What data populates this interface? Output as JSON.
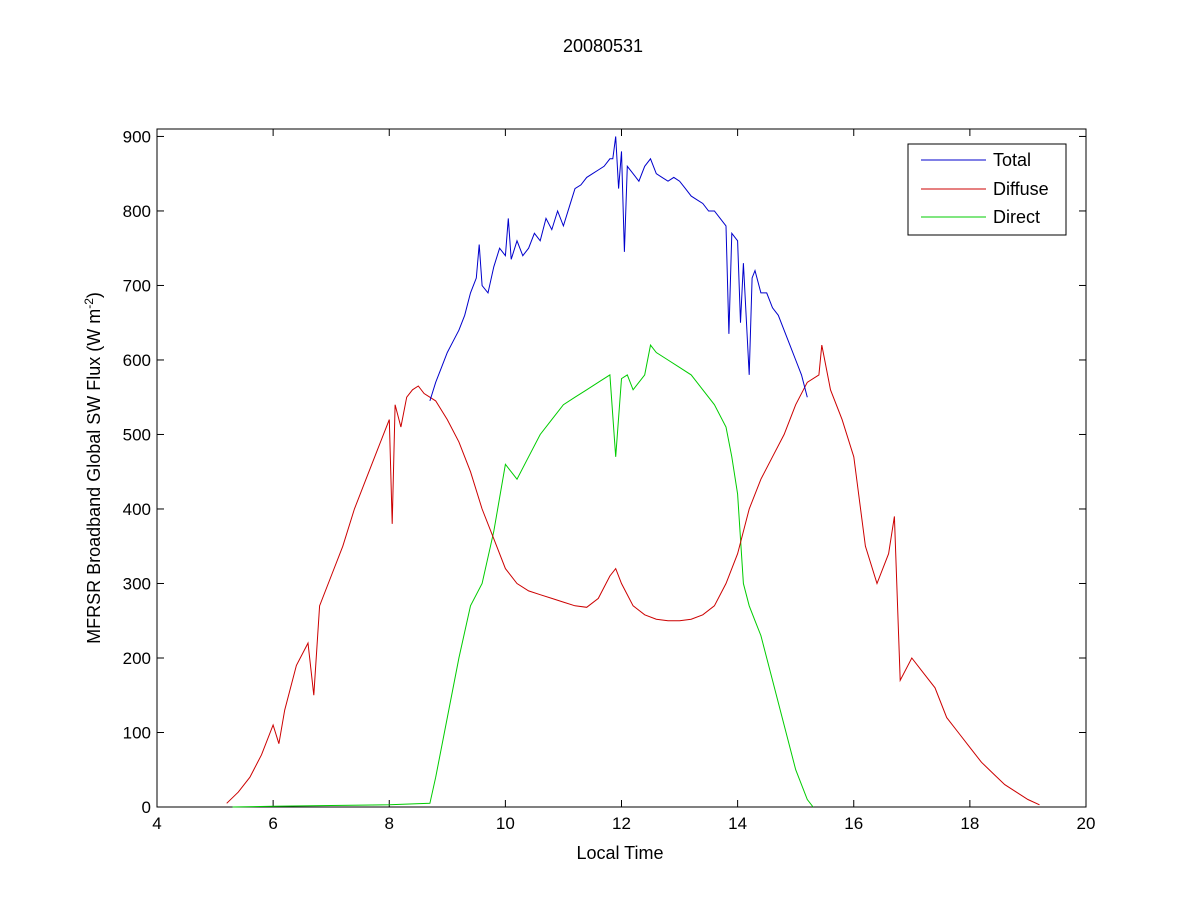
{
  "chart_data": {
    "type": "line",
    "title": "20080531",
    "xlabel": "Local Time",
    "ylabel": {
      "main": "MFRSR Broadband Global SW Flux (W m",
      "superscript": "-2",
      "close": ")"
    },
    "xlim": [
      4,
      20
    ],
    "ylim": [
      0,
      910
    ],
    "xticks": [
      4,
      6,
      8,
      10,
      12,
      14,
      16,
      18,
      20
    ],
    "yticks": [
      0,
      100,
      200,
      300,
      400,
      500,
      600,
      700,
      800,
      900
    ],
    "grid": false,
    "legend_position": "top-right",
    "series": [
      {
        "name": "Total",
        "color": "#0000cc",
        "x": [
          8.7,
          8.8,
          8.9,
          9.0,
          9.1,
          9.2,
          9.3,
          9.4,
          9.5,
          9.55,
          9.6,
          9.7,
          9.8,
          9.9,
          10.0,
          10.05,
          10.1,
          10.2,
          10.3,
          10.4,
          10.5,
          10.6,
          10.7,
          10.8,
          10.9,
          11.0,
          11.1,
          11.2,
          11.3,
          11.4,
          11.5,
          11.6,
          11.7,
          11.8,
          11.85,
          11.9,
          11.95,
          12.0,
          12.05,
          12.1,
          12.2,
          12.3,
          12.4,
          12.5,
          12.6,
          12.7,
          12.8,
          12.9,
          13.0,
          13.1,
          13.2,
          13.3,
          13.4,
          13.5,
          13.6,
          13.7,
          13.8,
          13.85,
          13.9,
          14.0,
          14.05,
          14.1,
          14.2,
          14.25,
          14.3,
          14.4,
          14.5,
          14.6,
          14.7,
          14.8,
          14.9,
          15.0,
          15.1,
          15.2
        ],
        "values": [
          545,
          570,
          590,
          610,
          625,
          640,
          660,
          690,
          710,
          755,
          700,
          690,
          725,
          750,
          740,
          790,
          735,
          760,
          740,
          750,
          770,
          760,
          790,
          775,
          800,
          780,
          805,
          830,
          835,
          845,
          850,
          855,
          860,
          870,
          870,
          900,
          830,
          880,
          745,
          860,
          850,
          840,
          860,
          870,
          850,
          845,
          840,
          845,
          840,
          830,
          820,
          815,
          810,
          800,
          800,
          790,
          780,
          635,
          770,
          760,
          650,
          730,
          580,
          710,
          720,
          690,
          690,
          670,
          660,
          640,
          620,
          600,
          580,
          550
        ]
      },
      {
        "name": "Diffuse",
        "color": "#cc0000",
        "x": [
          5.2,
          5.4,
          5.6,
          5.8,
          6.0,
          6.1,
          6.2,
          6.4,
          6.6,
          6.7,
          6.8,
          7.0,
          7.2,
          7.4,
          7.6,
          7.8,
          8.0,
          8.05,
          8.1,
          8.2,
          8.3,
          8.4,
          8.5,
          8.6,
          8.8,
          9.0,
          9.2,
          9.4,
          9.6,
          9.8,
          10.0,
          10.2,
          10.4,
          10.6,
          10.8,
          11.0,
          11.2,
          11.4,
          11.6,
          11.8,
          11.9,
          12.0,
          12.2,
          12.4,
          12.6,
          12.8,
          13.0,
          13.2,
          13.4,
          13.6,
          13.8,
          14.0,
          14.2,
          14.4,
          14.6,
          14.8,
          15.0,
          15.2,
          15.4,
          15.45,
          15.5,
          15.6,
          15.8,
          16.0,
          16.2,
          16.4,
          16.6,
          16.7,
          16.8,
          17.0,
          17.2,
          17.4,
          17.6,
          17.8,
          18.0,
          18.2,
          18.4,
          18.6,
          18.8,
          19.0,
          19.2
        ],
        "values": [
          5,
          20,
          40,
          70,
          110,
          85,
          130,
          190,
          220,
          150,
          270,
          310,
          350,
          400,
          440,
          480,
          520,
          380,
          540,
          510,
          550,
          560,
          565,
          555,
          545,
          520,
          490,
          450,
          400,
          360,
          320,
          300,
          290,
          285,
          280,
          275,
          270,
          268,
          280,
          310,
          320,
          300,
          270,
          258,
          252,
          250,
          250,
          252,
          258,
          270,
          300,
          340,
          400,
          440,
          470,
          500,
          540,
          570,
          580,
          620,
          600,
          560,
          520,
          470,
          350,
          300,
          340,
          390,
          170,
          200,
          180,
          160,
          120,
          100,
          80,
          60,
          45,
          30,
          20,
          10,
          3
        ]
      },
      {
        "name": "Direct",
        "color": "#00cc00",
        "x": [
          5.3,
          6.0,
          7.0,
          8.0,
          8.7,
          8.8,
          9.0,
          9.2,
          9.4,
          9.6,
          9.8,
          10.0,
          10.2,
          10.4,
          10.6,
          10.8,
          11.0,
          11.2,
          11.4,
          11.6,
          11.8,
          11.9,
          12.0,
          12.1,
          12.2,
          12.4,
          12.5,
          12.6,
          12.8,
          13.0,
          13.2,
          13.4,
          13.6,
          13.8,
          13.9,
          14.0,
          14.1,
          14.2,
          14.3,
          14.4,
          14.6,
          14.8,
          15.0,
          15.2,
          15.3
        ],
        "values": [
          0,
          1,
          2,
          3,
          5,
          40,
          120,
          200,
          270,
          300,
          370,
          460,
          440,
          470,
          500,
          520,
          540,
          550,
          560,
          570,
          580,
          470,
          575,
          580,
          560,
          580,
          620,
          610,
          600,
          590,
          580,
          560,
          540,
          510,
          470,
          420,
          300,
          270,
          250,
          230,
          170,
          110,
          50,
          10,
          0
        ]
      }
    ]
  }
}
